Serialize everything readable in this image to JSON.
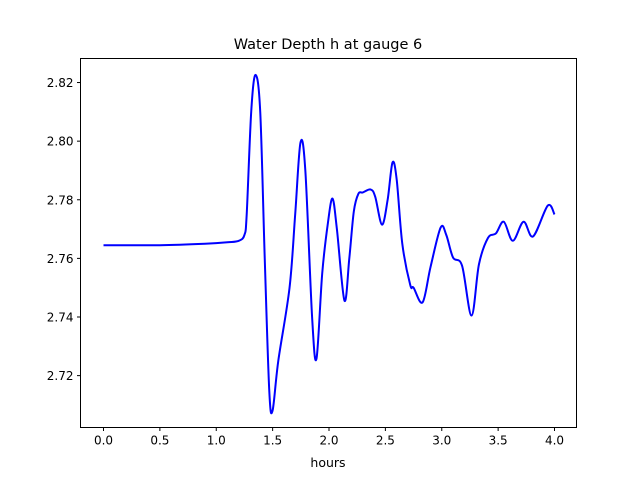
{
  "chart_data": {
    "type": "line",
    "title": "Water Depth h at gauge 6",
    "xlabel": "hours",
    "ylabel": "",
    "xlim": [
      -0.204,
      4.195
    ],
    "ylim": [
      2.7023,
      2.8282
    ],
    "xticks": [
      0.0,
      0.5,
      1.0,
      1.5,
      2.0,
      2.5,
      3.0,
      3.5,
      4.0
    ],
    "xtick_labels": [
      "0.0",
      "0.5",
      "1.0",
      "1.5",
      "2.0",
      "2.5",
      "3.0",
      "3.5",
      "4.0"
    ],
    "yticks": [
      2.72,
      2.74,
      2.76,
      2.78,
      2.8,
      2.82
    ],
    "ytick_labels": [
      "2.72",
      "2.74",
      "2.76",
      "2.78",
      "2.80",
      "2.82"
    ],
    "grid": false,
    "series": [
      {
        "name": "h",
        "color": "#0000ff",
        "x": [
          0,
          0.5,
          0.9,
          1.1,
          1.2,
          1.25,
          1.27,
          1.31,
          1.348,
          1.39,
          1.43,
          1.47,
          1.499,
          1.55,
          1.65,
          1.7,
          1.747,
          1.79,
          1.85,
          1.889,
          1.94,
          1.99,
          2.031,
          2.07,
          2.137,
          2.18,
          2.22,
          2.26,
          2.3,
          2.37,
          2.41,
          2.47,
          2.52,
          2.563,
          2.6,
          2.65,
          2.72,
          2.75,
          2.83,
          2.9,
          2.99,
          3.04,
          3.1,
          3.18,
          3.264,
          3.33,
          3.41,
          3.48,
          3.55,
          3.63,
          3.725,
          3.81,
          3.94,
          4.0
        ],
        "y": [
          2.7645,
          2.7645,
          2.765,
          2.7655,
          2.766,
          2.768,
          2.775,
          2.81,
          2.8226,
          2.81,
          2.76,
          2.715,
          2.708,
          2.725,
          2.75,
          2.775,
          2.7995,
          2.79,
          2.74,
          2.7258,
          2.755,
          2.772,
          2.7804,
          2.77,
          2.7456,
          2.76,
          2.776,
          2.782,
          2.7825,
          2.7835,
          2.781,
          2.7715,
          2.78,
          2.7927,
          2.787,
          2.765,
          2.751,
          2.75,
          2.745,
          2.757,
          2.7705,
          2.768,
          2.7603,
          2.7575,
          2.7405,
          2.758,
          2.767,
          2.7685,
          2.7725,
          2.766,
          2.7725,
          2.7675,
          2.778,
          2.775
        ]
      }
    ]
  }
}
